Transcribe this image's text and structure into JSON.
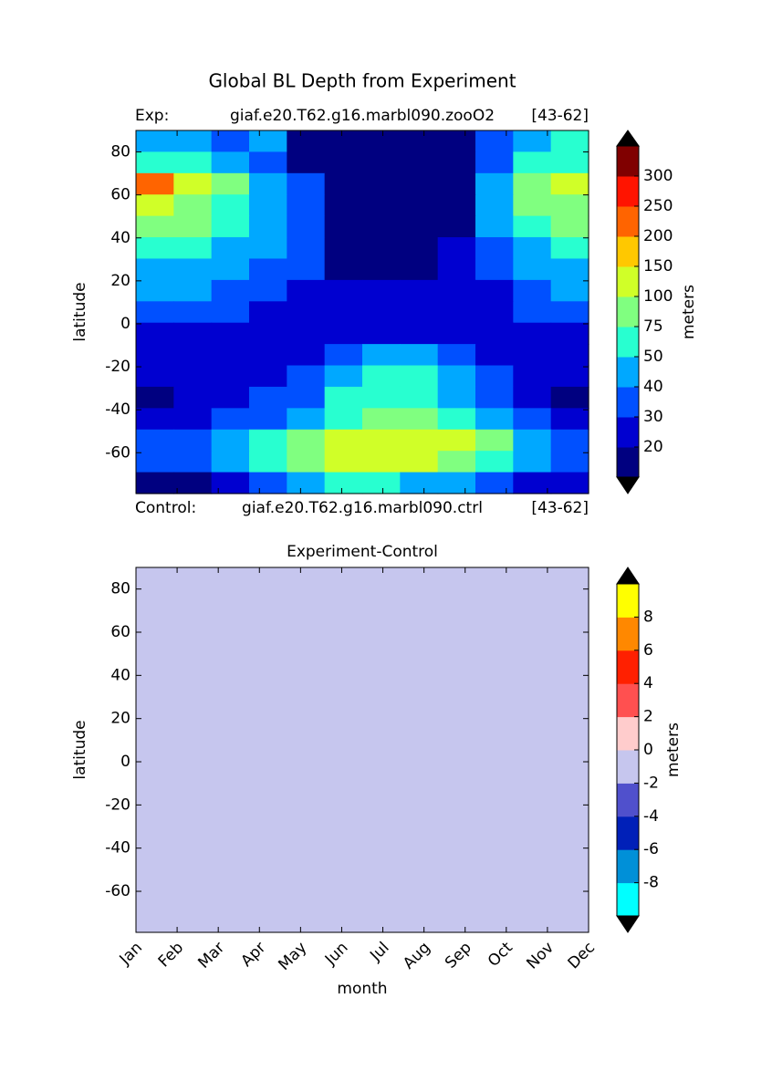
{
  "chart_data": [
    {
      "type": "contour",
      "title": "Global BL Depth from Experiment",
      "annotations": [
        "Exp:",
        "giaf.e20.T62.g16.marbl090.zooO2",
        "[43-62]",
        "Control:",
        "giaf.e20.T62.g16.marbl090.ctrl",
        "[43-62]"
      ],
      "y_label": "latitude",
      "colorbar_label": "meters",
      "ylim": [
        -79,
        90
      ],
      "yticks": [
        -60,
        -40,
        -20,
        0,
        20,
        40,
        60,
        80
      ],
      "levels": [
        20,
        30,
        40,
        50,
        75,
        100,
        150,
        200,
        250,
        300
      ],
      "colors": [
        "#000080",
        "#0000d0",
        "#0050ff",
        "#00a8ff",
        "#28ffd0",
        "#80ff80",
        "#d0ff28",
        "#ffc800",
        "#ff6400",
        "#ff1400",
        "#800000"
      ],
      "extend_color": "#000000",
      "z": [
        [
          45,
          45,
          35,
          45,
          15,
          15,
          15,
          15,
          15,
          35,
          45,
          60
        ],
        [
          60,
          60,
          45,
          35,
          15,
          15,
          15,
          15,
          15,
          35,
          60,
          60
        ],
        [
          220,
          120,
          85,
          45,
          35,
          15,
          15,
          15,
          15,
          45,
          85,
          120
        ],
        [
          120,
          85,
          60,
          45,
          35,
          15,
          15,
          15,
          15,
          45,
          85,
          85
        ],
        [
          85,
          85,
          60,
          45,
          35,
          15,
          15,
          15,
          15,
          45,
          60,
          85
        ],
        [
          60,
          60,
          45,
          45,
          35,
          15,
          15,
          15,
          25,
          35,
          45,
          60
        ],
        [
          45,
          45,
          45,
          35,
          35,
          15,
          15,
          15,
          25,
          35,
          45,
          45
        ],
        [
          45,
          45,
          35,
          35,
          25,
          25,
          25,
          25,
          25,
          25,
          35,
          45
        ],
        [
          35,
          35,
          35,
          25,
          25,
          25,
          25,
          25,
          25,
          25,
          35,
          35
        ],
        [
          25,
          25,
          25,
          25,
          25,
          25,
          25,
          25,
          25,
          25,
          25,
          25
        ],
        [
          25,
          25,
          25,
          25,
          25,
          35,
          45,
          45,
          35,
          25,
          25,
          25
        ],
        [
          25,
          25,
          25,
          25,
          35,
          45,
          60,
          60,
          45,
          35,
          25,
          25
        ],
        [
          15,
          25,
          25,
          35,
          35,
          60,
          60,
          60,
          45,
          35,
          25,
          15
        ],
        [
          25,
          25,
          35,
          35,
          45,
          60,
          85,
          85,
          60,
          45,
          35,
          25
        ],
        [
          35,
          35,
          45,
          60,
          85,
          120,
          120,
          120,
          120,
          85,
          45,
          35
        ],
        [
          35,
          35,
          45,
          60,
          85,
          120,
          120,
          120,
          85,
          60,
          45,
          35
        ],
        [
          15,
          15,
          25,
          35,
          45,
          60,
          60,
          45,
          45,
          35,
          25,
          25
        ]
      ]
    },
    {
      "type": "contour",
      "title": "Experiment-Control",
      "x_label": "month",
      "y_label": "latitude",
      "colorbar_label": "meters",
      "categories": [
        "Jan",
        "Feb",
        "Mar",
        "Apr",
        "May",
        "Jun",
        "Jul",
        "Aug",
        "Sep",
        "Oct",
        "Nov",
        "Dec"
      ],
      "ylim": [
        -79,
        90
      ],
      "yticks": [
        -60,
        -40,
        -20,
        0,
        20,
        40,
        60,
        80
      ],
      "levels": [
        -8,
        -6,
        -4,
        -2,
        0,
        2,
        4,
        6,
        8
      ],
      "colors": [
        "#00ffff",
        "#0090d8",
        "#0020b8",
        "#5050cc",
        "#c6c6ee",
        "#ffcccc",
        "#ff5050",
        "#ff2000",
        "#ff8800",
        "#ffff00"
      ],
      "extend_color": "#000000",
      "z": [
        [
          0
        ]
      ]
    }
  ]
}
